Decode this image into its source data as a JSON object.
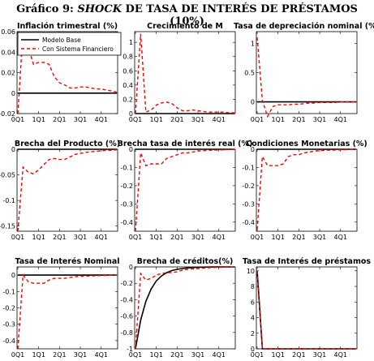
{
  "figure_title": {
    "prefix": "Gráfico 9: ",
    "italic": "SHOCK",
    "suffix": " DE TASA DE INTERÉS DE PRÉSTAMOS (10%)"
  },
  "legend": {
    "items": [
      {
        "label": "Modelo Base",
        "color": "#000000",
        "style": "solid"
      },
      {
        "label": "Con Sistema Financiero",
        "color": "#ff0000",
        "style": "dashed"
      }
    ]
  },
  "chart_data": [
    {
      "type": "line",
      "title": "Inflación trimestral (%)",
      "x_ticks": [
        "0Q1",
        "1Q1",
        "2Q1",
        "3Q1",
        "4Q1"
      ],
      "ylim": [
        -0.02,
        0.06
      ],
      "y_ticks": [
        -0.02,
        0,
        0.02,
        0.04,
        0.06
      ],
      "y_tick_labels": [
        "-0.02",
        "0",
        "0.02",
        "0.04",
        "0.06"
      ],
      "series": [
        {
          "name": "Modelo Base",
          "values": [
            0,
            0,
            0,
            0,
            0,
            0,
            0,
            0,
            0,
            0,
            0,
            0,
            0,
            0,
            0,
            0,
            0,
            0,
            0,
            0
          ]
        },
        {
          "name": "Con Sistema Financiero",
          "values": [
            -0.02,
            0.06,
            0.045,
            0.028,
            0.03,
            0.03,
            0.028,
            0.016,
            0.01,
            0.008,
            0.005,
            0.005,
            0.006,
            0.006,
            0.005,
            0.004,
            0.004,
            0.003,
            0.002,
            0.001
          ]
        }
      ]
    },
    {
      "type": "line",
      "title": "Crecimiento de M",
      "x_ticks": [
        "0Q1",
        "1Q1",
        "2Q1",
        "3Q1",
        "4Q1"
      ],
      "ylim": [
        0,
        1.15
      ],
      "y_ticks": [
        0,
        0.2,
        0.4,
        0.6,
        0.8,
        1
      ],
      "y_tick_labels": [
        "0",
        "0.2",
        "0.4",
        "0.6",
        "0.8",
        "1"
      ],
      "series": [
        {
          "name": "Modelo Base",
          "values": [
            0,
            0,
            0,
            0,
            0,
            0,
            0,
            0,
            0,
            0,
            0,
            0,
            0,
            0,
            0,
            0,
            0,
            0,
            0,
            0
          ]
        },
        {
          "name": "Con Sistema Financiero",
          "values": [
            0,
            1.12,
            0.02,
            0.05,
            0.12,
            0.15,
            0.16,
            0.14,
            0.08,
            0.04,
            0.04,
            0.05,
            0.04,
            0.03,
            0.02,
            0.02,
            0.02,
            0.02,
            0.01,
            0.01
          ]
        }
      ]
    },
    {
      "type": "line",
      "title": "Tasa de depreciación nominal (%)",
      "x_ticks": [
        "0Q1",
        "1Q1",
        "2Q1",
        "3Q1",
        "4Q1"
      ],
      "ylim": [
        -0.2,
        1.2
      ],
      "y_ticks": [
        0,
        0.5,
        1
      ],
      "y_tick_labels": [
        "0",
        "0.5",
        "1"
      ],
      "series": [
        {
          "name": "Modelo Base",
          "values": [
            0,
            0,
            0,
            0,
            0,
            0,
            0,
            0,
            0,
            0,
            0,
            0,
            0,
            0,
            0,
            0,
            0,
            0,
            0,
            0
          ]
        },
        {
          "name": "Con Sistema Financiero",
          "values": [
            1.1,
            0.02,
            -0.25,
            -0.08,
            -0.05,
            -0.05,
            -0.05,
            -0.04,
            -0.04,
            -0.03,
            -0.02,
            -0.02,
            -0.01,
            -0.01,
            -0.01,
            -0.01,
            0,
            0,
            0,
            0
          ]
        }
      ]
    },
    {
      "type": "line",
      "title": "Brecha del Producto (%)",
      "x_ticks": [
        "0Q1",
        "1Q1",
        "2Q1",
        "3Q1",
        "4Q1"
      ],
      "ylim": [
        -0.16,
        0
      ],
      "y_ticks": [
        -0.15,
        -0.1,
        -0.05,
        0
      ],
      "y_tick_labels": [
        "-0.15",
        "-0.1",
        "-0.05",
        "0"
      ],
      "series": [
        {
          "name": "Modelo Base",
          "values": [
            0,
            0,
            0,
            0,
            0,
            0,
            0,
            0,
            0,
            0,
            0,
            0,
            0,
            0,
            0,
            0,
            0,
            0,
            0,
            0
          ]
        },
        {
          "name": "Con Sistema Financiero",
          "values": [
            -0.16,
            -0.035,
            -0.045,
            -0.048,
            -0.04,
            -0.03,
            -0.02,
            -0.018,
            -0.02,
            -0.02,
            -0.015,
            -0.01,
            -0.008,
            -0.006,
            -0.005,
            -0.004,
            -0.003,
            -0.002,
            -0.002,
            -0.001
          ]
        }
      ]
    },
    {
      "type": "line",
      "title": "Brecha tasa de interés real (%)",
      "x_ticks": [
        "0Q1",
        "1Q1",
        "2Q1",
        "3Q1",
        "4Q1"
      ],
      "ylim": [
        -0.45,
        0
      ],
      "y_ticks": [
        -0.4,
        -0.3,
        -0.2,
        -0.1,
        0
      ],
      "y_tick_labels": [
        "-0.4",
        "-0.3",
        "-0.2",
        "-0.1",
        "0"
      ],
      "series": [
        {
          "name": "Modelo Base",
          "values": [
            0,
            0,
            0,
            0,
            0,
            0,
            0,
            0,
            0,
            0,
            0,
            0,
            0,
            0,
            0,
            0,
            0,
            0,
            0,
            0
          ]
        },
        {
          "name": "Con Sistema Financiero",
          "values": [
            -0.45,
            -0.02,
            -0.09,
            -0.08,
            -0.08,
            -0.08,
            -0.05,
            -0.04,
            -0.03,
            -0.02,
            -0.02,
            -0.015,
            -0.01,
            -0.008,
            -0.006,
            -0.005,
            -0.004,
            -0.003,
            -0.002,
            -0.001
          ]
        }
      ]
    },
    {
      "type": "line",
      "title": "Condiciones Monetarias (%)",
      "x_ticks": [
        "0Q1",
        "1Q1",
        "2Q1",
        "3Q1",
        "4Q1"
      ],
      "ylim": [
        -0.45,
        0
      ],
      "y_ticks": [
        -0.4,
        -0.3,
        -0.2,
        -0.1,
        0
      ],
      "y_tick_labels": [
        "-0.4",
        "-0.3",
        "-0.2",
        "-0.1",
        "0"
      ],
      "series": [
        {
          "name": "Modelo Base",
          "values": [
            0,
            0,
            0,
            0,
            0,
            0,
            0,
            0,
            0,
            0,
            0,
            0,
            0,
            0,
            0,
            0,
            0,
            0,
            0,
            0
          ]
        },
        {
          "name": "Con Sistema Financiero",
          "values": [
            -0.44,
            -0.04,
            -0.09,
            -0.09,
            -0.09,
            -0.08,
            -0.04,
            -0.03,
            -0.03,
            -0.02,
            -0.015,
            -0.01,
            -0.008,
            -0.006,
            -0.005,
            -0.004,
            -0.003,
            -0.002,
            -0.001,
            -0.001
          ]
        }
      ]
    },
    {
      "type": "line",
      "title": "Tasa de Interés Nominal",
      "x_ticks": [
        "0Q1",
        "1Q1",
        "2Q1",
        "3Q1",
        "4Q1"
      ],
      "ylim": [
        -0.45,
        0.05
      ],
      "y_ticks": [
        -0.4,
        -0.3,
        -0.2,
        -0.1,
        0
      ],
      "y_tick_labels": [
        "-0.4",
        "-0.3",
        "-0.2",
        "-0.1",
        "0"
      ],
      "series": [
        {
          "name": "Modelo Base",
          "values": [
            0,
            0,
            0,
            0,
            0,
            0,
            0,
            0,
            0,
            0,
            0,
            0,
            0,
            0,
            0,
            0,
            0,
            0,
            0,
            0
          ]
        },
        {
          "name": "Con Sistema Financiero",
          "values": [
            -0.45,
            0,
            -0.04,
            -0.05,
            -0.05,
            -0.05,
            -0.03,
            -0.02,
            -0.02,
            -0.02,
            -0.015,
            -0.01,
            -0.008,
            -0.006,
            -0.005,
            -0.004,
            -0.003,
            -0.002,
            -0.001,
            -0.001
          ]
        }
      ]
    },
    {
      "type": "line",
      "title": "Brecha de créditos(%)",
      "x_ticks": [
        "0Q1",
        "1Q1",
        "2Q1",
        "3Q1",
        "4Q1"
      ],
      "ylim": [
        -1,
        0
      ],
      "y_ticks": [
        -1,
        -0.8,
        -0.6,
        -0.4,
        -0.2,
        0
      ],
      "y_tick_labels": [
        "-1",
        "-0.8",
        "-0.6",
        "-0.4",
        "-0.2",
        "0"
      ],
      "series": [
        {
          "name": "Modelo Base",
          "values": [
            -1,
            -0.65,
            -0.42,
            -0.27,
            -0.17,
            -0.11,
            -0.07,
            -0.045,
            -0.03,
            -0.02,
            -0.012,
            -0.008,
            -0.005,
            -0.003,
            -0.002,
            -0.001,
            0,
            0,
            0,
            0
          ]
        },
        {
          "name": "Con Sistema Financiero",
          "values": [
            -1,
            -0.08,
            -0.16,
            -0.14,
            -0.1,
            -0.08,
            -0.07,
            -0.07,
            -0.06,
            -0.04,
            -0.03,
            -0.025,
            -0.02,
            -0.015,
            -0.01,
            -0.008,
            -0.006,
            -0.005,
            -0.003,
            -0.002
          ]
        }
      ]
    },
    {
      "type": "line",
      "title": "Tasa de Interés de préstamos",
      "x_ticks": [
        "0Q1",
        "1Q1",
        "2Q1",
        "3Q1",
        "4Q1"
      ],
      "ylim": [
        0,
        10.5
      ],
      "y_ticks": [
        0,
        2,
        4,
        6,
        8,
        10
      ],
      "y_tick_labels": [
        "0",
        "2",
        "4",
        "6",
        "8",
        "10"
      ],
      "series": [
        {
          "name": "Modelo Base",
          "values": [
            10,
            0,
            0,
            0,
            0,
            0,
            0,
            0,
            0,
            0,
            0,
            0,
            0,
            0,
            0,
            0,
            0,
            0,
            0,
            0
          ]
        },
        {
          "name": "Con Sistema Financiero",
          "values": [
            10,
            0,
            0,
            0,
            0,
            0,
            0,
            0,
            0,
            0,
            0,
            0,
            0,
            0,
            0,
            0,
            0,
            0,
            0,
            0
          ]
        }
      ]
    }
  ]
}
